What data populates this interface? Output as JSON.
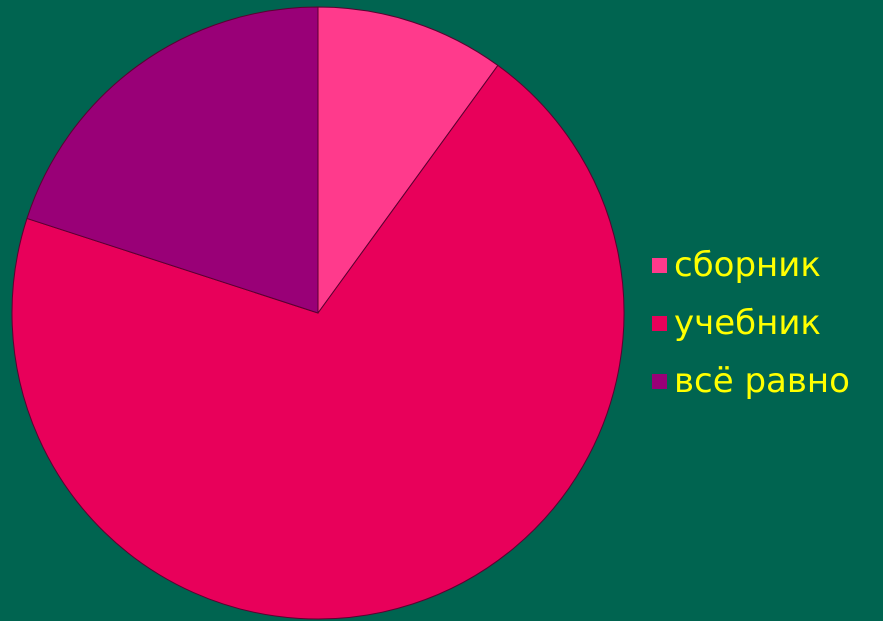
{
  "chart_data": {
    "type": "pie",
    "title": "",
    "slices": [
      {
        "label": "сборник",
        "value": 10,
        "color": "#FF3A8C"
      },
      {
        "label": "учебник",
        "value": 70,
        "color": "#E8005A"
      },
      {
        "label": "всё равно",
        "value": 20,
        "color": "#990077"
      }
    ],
    "start_angle_deg": 0,
    "direction": "clockwise",
    "legend_position": "right",
    "slice_border_color": "#5A0030"
  },
  "colors": {
    "background": "#006450",
    "legend_text": "#FFFF00"
  }
}
